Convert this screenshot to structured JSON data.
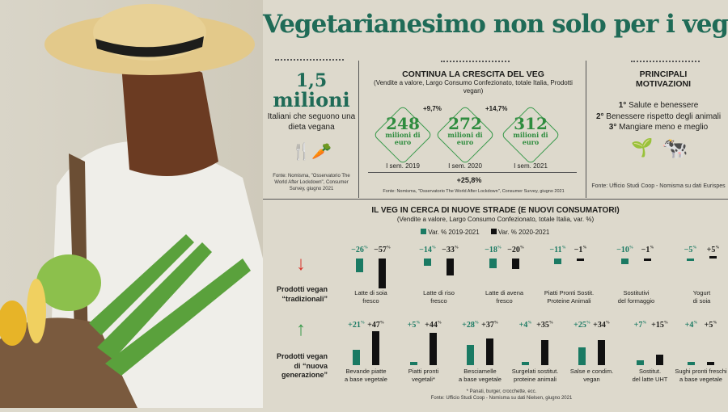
{
  "title": "Vegetarianesimo non solo per i veg",
  "left_panel": {
    "number": "1,5",
    "unit": "milioni",
    "caption": "Italiani che seguono una dieta vegana",
    "icons": [
      "fork-icon",
      "carrot-icon",
      "knife-icon"
    ],
    "source": "Fonte: Nomisma, \"Osservatorio The World After Lockdown\", Consumer Survey, giugno 2021"
  },
  "growth": {
    "heading": "CONTINUA LA CRESCITA DEL VEG",
    "subheading": "(Vendite a valore, Largo Consumo Confezionato, totale Italia, Prodotti vegan)",
    "unit": "milioni di euro",
    "items": [
      {
        "value": "248",
        "period": "I sem. 2019"
      },
      {
        "value": "272",
        "period": "I sem. 2020"
      },
      {
        "value": "312",
        "period": "I sem. 2021"
      }
    ],
    "changes": [
      "+9,7%",
      "+14,7%"
    ],
    "total_change": "+25,8%",
    "source": "Fonte: Nomisma, \"Osservatorio The World After Lockdown\", Consumer Survey, giugno 2021"
  },
  "motivations": {
    "heading1": "PRINCIPALI",
    "heading2": "MOTIVAZIONI",
    "items": [
      {
        "rank": "1°",
        "text": "Salute e benessere"
      },
      {
        "rank": "2°",
        "text": "Benessere rispetto degli animali"
      },
      {
        "rank": "3°",
        "text": "Mangiare meno e meglio"
      }
    ],
    "icons": [
      "plant-icon",
      "cow-icon"
    ],
    "source": "Fonte: Ufficio Studi Coop - Nomisma su dati Eurispes"
  },
  "colors": {
    "green": "#1a7a63",
    "black": "#111111",
    "title": "#1f6b57",
    "arrow_down": "#d9342b",
    "arrow_up": "#3a9a4c"
  },
  "chart_data": {
    "type": "bar",
    "title": "IL VEG IN CERCA DI NUOVE STRADE (E NUOVI CONSUMATORI)",
    "subtitle": "(Vendite a valore, Largo Consumo Confezionato, totale Italia, var. %)",
    "legend": [
      "Var. % 2019-2021",
      "Var. % 2020-2021"
    ],
    "legend_placement": "top",
    "footnote": "* Panati, burger, crocchette, ecc.",
    "source": "Fonte: Ufficio Studi Coop - Nomisma su dati Nielsen, giugno 2021",
    "groups": [
      {
        "label1": "Prodotti vegan",
        "label2": "“tradizionali”",
        "categories": [
          [
            "Latte di soia",
            "fresco"
          ],
          [
            "Latte di riso",
            "fresco"
          ],
          [
            "Latte di avena",
            "fresco"
          ],
          [
            "Piatti Pronti Sostit.",
            "Proteine Animali"
          ],
          [
            "Sostitutivi",
            "del formaggio"
          ],
          [
            "Yogurt",
            "di soia"
          ]
        ],
        "series": [
          {
            "name": "Var. % 2019-2021",
            "values": [
              -26,
              -14,
              -18,
              -11,
              -10,
              -5
            ]
          },
          {
            "name": "Var. % 2020-2021",
            "values": [
              -57,
              -33,
              -20,
              -1,
              -1,
              5
            ]
          }
        ]
      },
      {
        "label1": "Prodotti vegan",
        "label2": "di “nuova",
        "label3": "generazione”",
        "categories": [
          [
            "Bevande piatte",
            "a base vegetale"
          ],
          [
            "Piatti pronti",
            "vegetali*"
          ],
          [
            "Besciamelle",
            "a base vegetale"
          ],
          [
            "Surgelati sostitut.",
            "proteine animali"
          ],
          [
            "Salse e condim.",
            "vegan"
          ],
          [
            "Sostitut.",
            "del latte UHT"
          ],
          [
            "Sughi pronti freschi",
            "a base vegetale"
          ]
        ],
        "series": [
          {
            "name": "Var. % 2019-2021",
            "values": [
              21,
              5,
              28,
              4,
              25,
              7,
              4
            ]
          },
          {
            "name": "Var. % 2020-2021",
            "values": [
              47,
              44,
              37,
              35,
              34,
              15,
              5
            ]
          }
        ]
      }
    ]
  }
}
